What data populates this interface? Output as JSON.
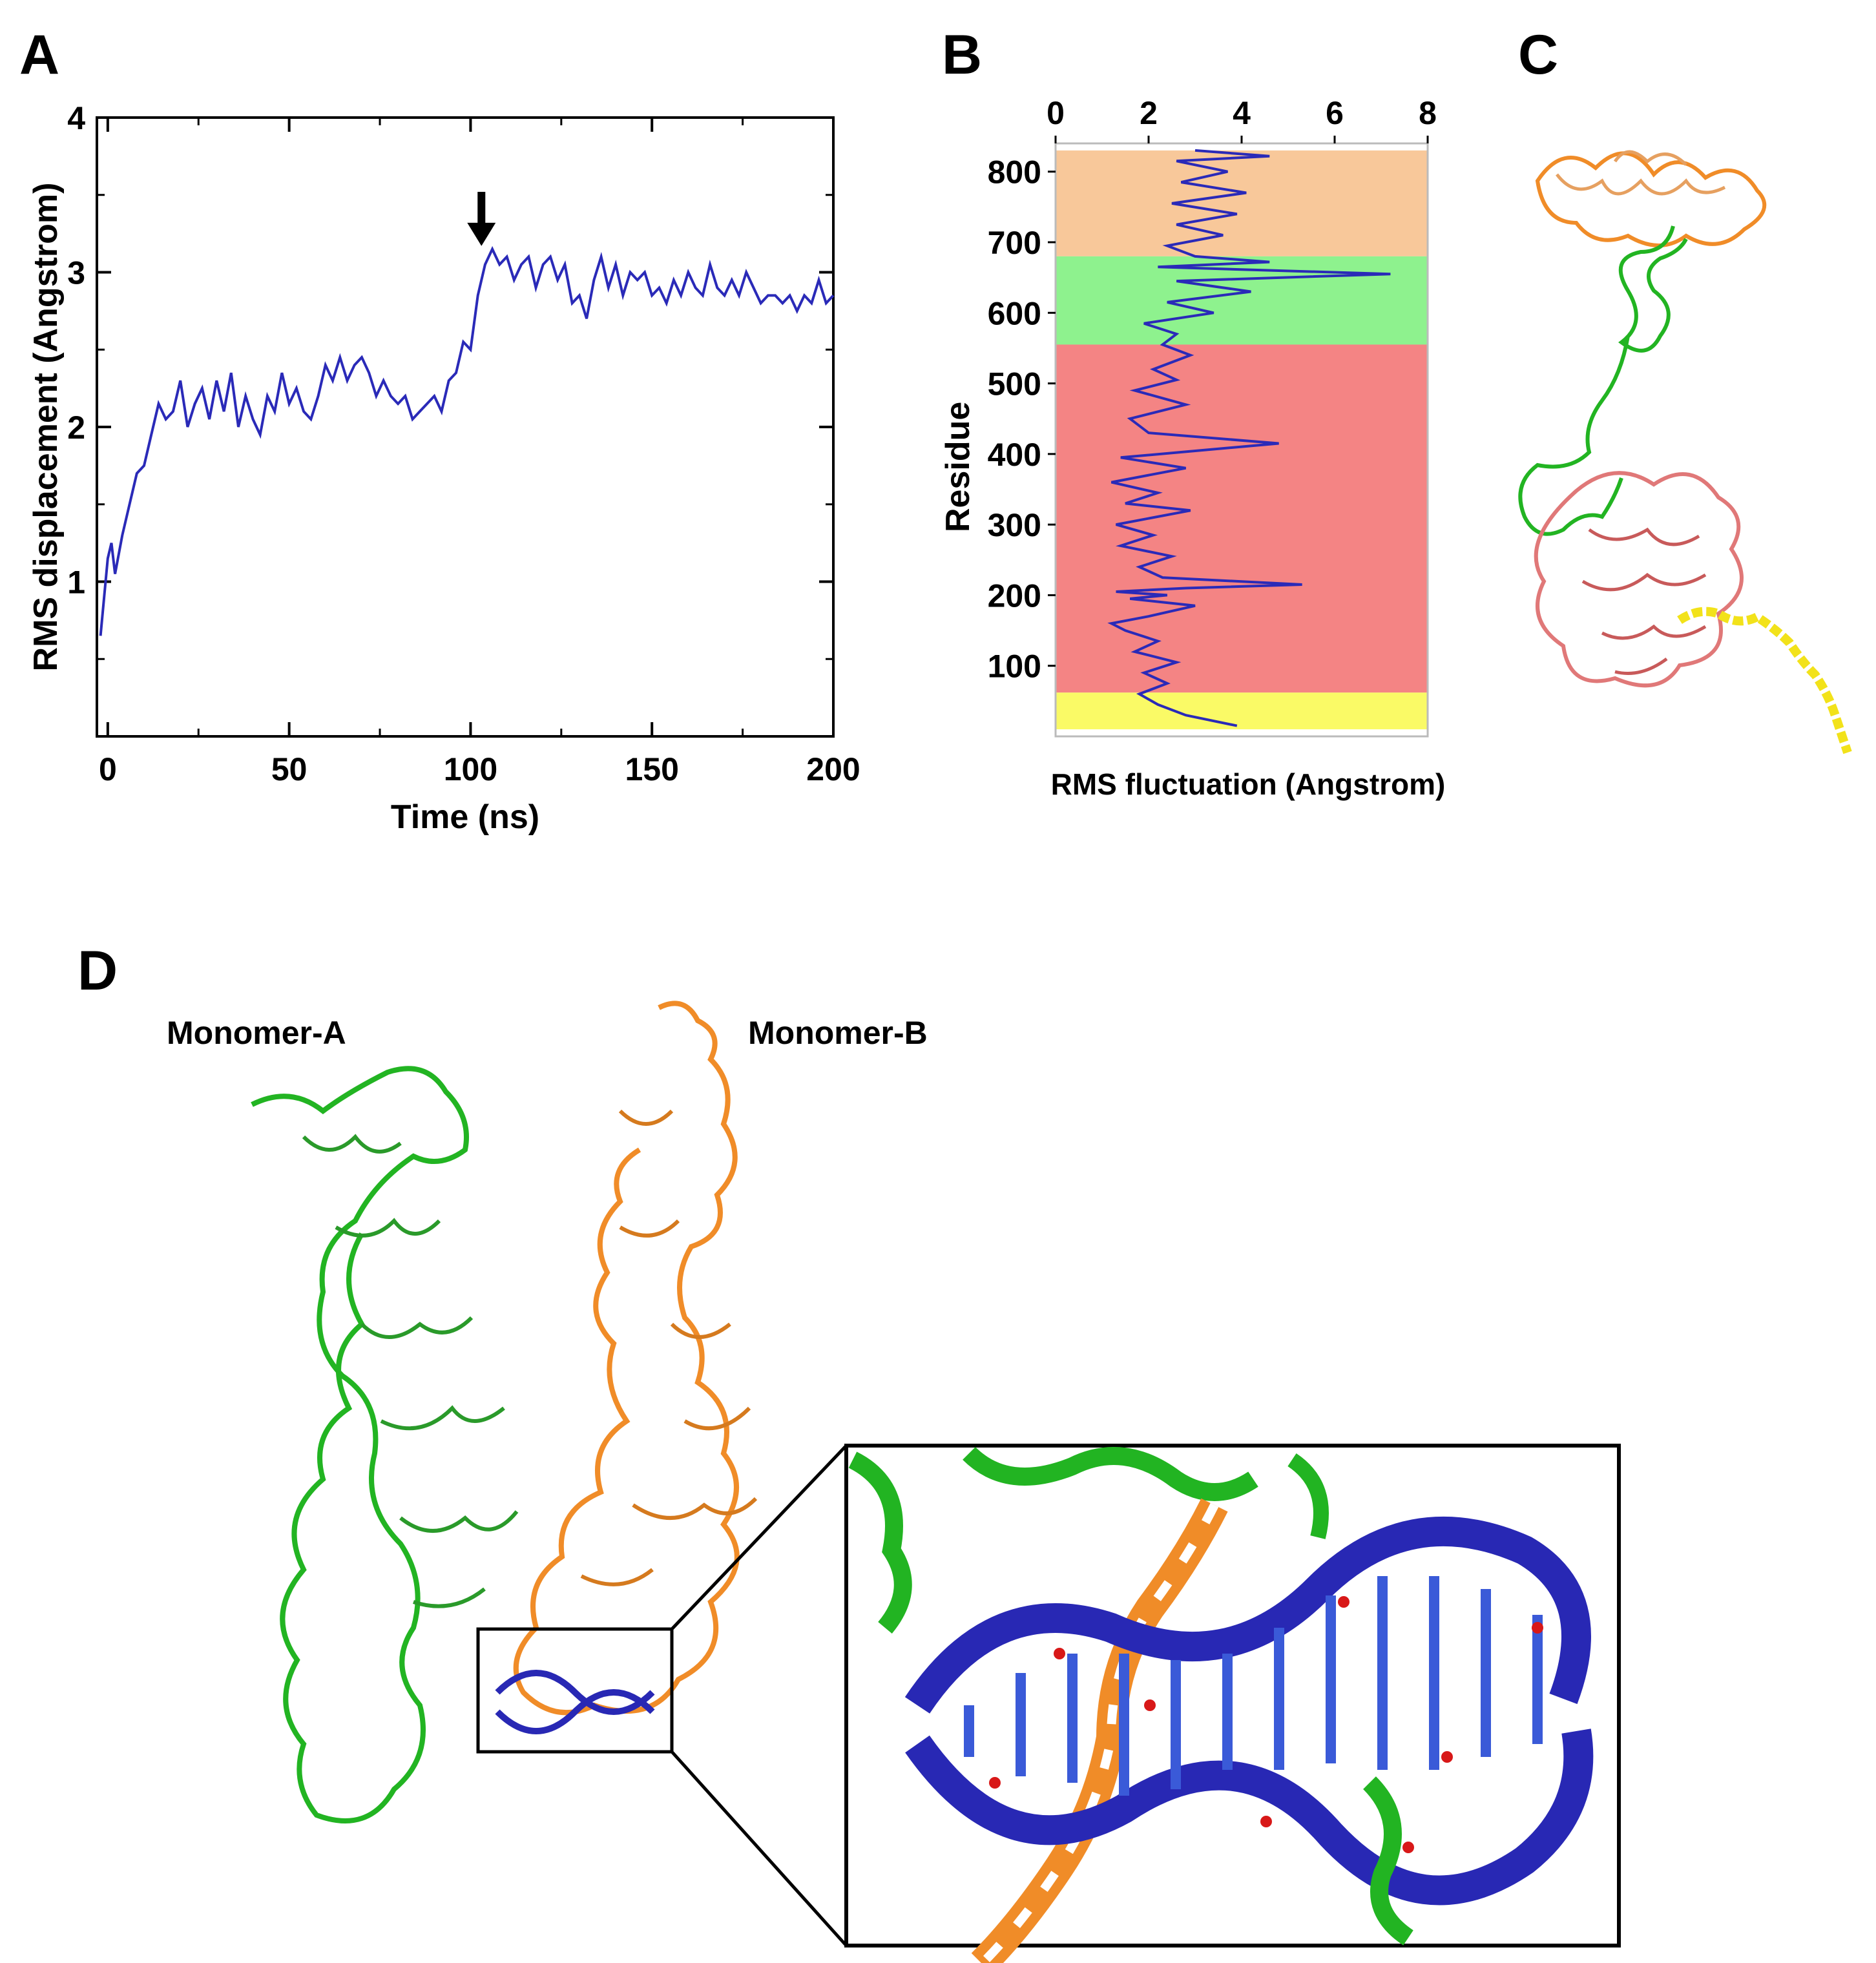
{
  "panels": {
    "a": "A",
    "b": "B",
    "c": "C",
    "d": "D"
  },
  "labels": {
    "monomer_a": "Monomer-A",
    "monomer_b": "Monomer-B"
  },
  "colors": {
    "line": "#2a2ab8",
    "band_orange": "#f8c89a",
    "band_green": "#8ef28e",
    "band_red": "#f48484",
    "band_yellow": "#fafa66",
    "protein_green": "#22b422",
    "protein_orange": "#f08c28",
    "protein_red": "#e07878",
    "protein_yellow": "#f2e21a",
    "dna_blue": "#2828b4"
  },
  "chart_data": [
    {
      "type": "line",
      "panel": "A",
      "xlabel": "Time (ns)",
      "ylabel": "RMS displacement (Angstrom)",
      "xlim": [
        -3,
        200
      ],
      "ylim": [
        0,
        4
      ],
      "xticks": [
        0,
        50,
        100,
        150,
        200
      ],
      "yticks": [
        1,
        2,
        3,
        4
      ],
      "annotation": "down arrow at t = 103 ns",
      "series": [
        {
          "x": [
            -2,
            0,
            1,
            2,
            4,
            6,
            8,
            10,
            12,
            14,
            16,
            18,
            20,
            22,
            24,
            26,
            28,
            30,
            32,
            34,
            36,
            38,
            40,
            42,
            44,
            46,
            48,
            50,
            52,
            54,
            56,
            58,
            60,
            62,
            64,
            66,
            68,
            70,
            72,
            74,
            76,
            78,
            80,
            82,
            84,
            86,
            88,
            90,
            92,
            94,
            96,
            98,
            100,
            102,
            104,
            106,
            108,
            110,
            112,
            114,
            116,
            118,
            120,
            122,
            124,
            126,
            128,
            130,
            132,
            134,
            136,
            138,
            140,
            142,
            144,
            146,
            148,
            150,
            152,
            154,
            156,
            158,
            160,
            162,
            164,
            166,
            168,
            170,
            172,
            174,
            176,
            178,
            180,
            182,
            184,
            186,
            188,
            190,
            192,
            194,
            196,
            198,
            200
          ],
          "y": [
            0.65,
            1.15,
            1.25,
            1.05,
            1.3,
            1.5,
            1.7,
            1.75,
            1.95,
            2.15,
            2.05,
            2.1,
            2.3,
            2.0,
            2.15,
            2.25,
            2.05,
            2.3,
            2.1,
            2.35,
            2.0,
            2.2,
            2.05,
            1.95,
            2.2,
            2.1,
            2.35,
            2.15,
            2.25,
            2.1,
            2.05,
            2.2,
            2.4,
            2.3,
            2.45,
            2.3,
            2.4,
            2.45,
            2.35,
            2.2,
            2.3,
            2.2,
            2.15,
            2.2,
            2.05,
            2.1,
            2.15,
            2.2,
            2.1,
            2.3,
            2.35,
            2.55,
            2.5,
            2.85,
            3.05,
            3.15,
            3.05,
            3.1,
            2.95,
            3.05,
            3.1,
            2.9,
            3.05,
            3.1,
            2.95,
            3.05,
            2.8,
            2.85,
            2.7,
            2.95,
            3.1,
            2.9,
            3.05,
            2.85,
            3.0,
            2.95,
            3.0,
            2.85,
            2.9,
            2.8,
            2.95,
            2.85,
            3.0,
            2.9,
            2.85,
            3.05,
            2.9,
            2.85,
            2.95,
            2.85,
            3.0,
            2.9,
            2.8,
            2.85,
            2.85,
            2.8,
            2.85,
            2.75,
            2.85,
            2.8,
            2.95,
            2.8,
            2.85
          ]
        }
      ]
    },
    {
      "type": "line",
      "panel": "B",
      "orientation": "horizontal",
      "xlabel": "RMS fluctuation (Angstrom)",
      "ylabel": "Residue",
      "xlim": [
        0,
        8
      ],
      "ylim": [
        0,
        840
      ],
      "xticks": [
        0,
        2,
        4,
        6,
        8
      ],
      "yticks": [
        100,
        200,
        300,
        400,
        500,
        600,
        700,
        800
      ],
      "bands": [
        {
          "from": 680,
          "to": 830,
          "color": "#f8c89a"
        },
        {
          "from": 555,
          "to": 680,
          "color": "#8ef28e"
        },
        {
          "from": 62,
          "to": 555,
          "color": "#f48484"
        },
        {
          "from": 10,
          "to": 62,
          "color": "#fafa66"
        }
      ],
      "series": [
        {
          "x": [
            3.9,
            2.8,
            2.2,
            1.8,
            2.4,
            1.9,
            2.6,
            1.7,
            2.2,
            1.5,
            1.2,
            2.0,
            3.0,
            1.6,
            2.4,
            1.3,
            2.8,
            5.3,
            2.3,
            1.8,
            2.5,
            1.4,
            2.1,
            1.3,
            2.9,
            1.5,
            2.2,
            1.2,
            2.8,
            1.4,
            4.8,
            2.0,
            1.6,
            2.8,
            1.7,
            2.6,
            2.1,
            2.9,
            2.3,
            2.6,
            1.9,
            3.4,
            2.4,
            4.2,
            2.6,
            7.2,
            2.2,
            4.6,
            3.0,
            2.4,
            3.6,
            2.6,
            3.9,
            2.5,
            4.1,
            2.7,
            3.7,
            2.6,
            4.6,
            3.0
          ],
          "y": [
            15,
            30,
            45,
            60,
            75,
            90,
            105,
            120,
            135,
            150,
            160,
            170,
            185,
            195,
            200,
            205,
            210,
            215,
            225,
            240,
            255,
            270,
            285,
            300,
            320,
            330,
            345,
            360,
            380,
            395,
            415,
            430,
            450,
            470,
            490,
            505,
            520,
            540,
            555,
            570,
            585,
            600,
            615,
            630,
            645,
            655,
            665,
            672,
            680,
            695,
            710,
            725,
            740,
            755,
            770,
            785,
            800,
            815,
            822,
            830
          ]
        }
      ]
    }
  ]
}
